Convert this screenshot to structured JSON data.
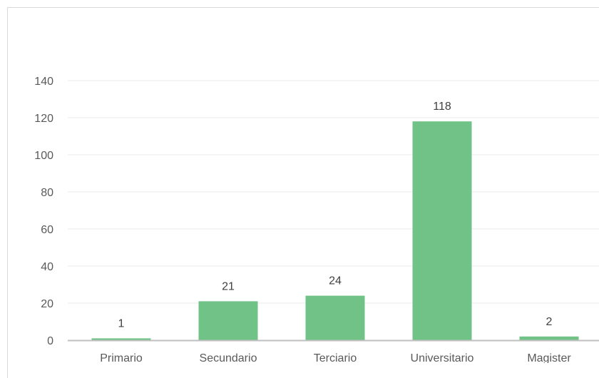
{
  "chart_data": {
    "type": "bar",
    "categories": [
      "Primario",
      "Secundario",
      "Terciario",
      "Universitario",
      "Magister"
    ],
    "values": [
      1,
      21,
      24,
      118,
      2
    ],
    "ylim": [
      0,
      140
    ],
    "yticks": [
      0,
      20,
      40,
      60,
      80,
      100,
      120,
      140
    ],
    "title": "",
    "xlabel": "",
    "ylabel": "",
    "grid": true,
    "colors": {
      "bar": "#71c287",
      "grid": "#ebebeb",
      "axis": "#bfbfbf"
    }
  }
}
